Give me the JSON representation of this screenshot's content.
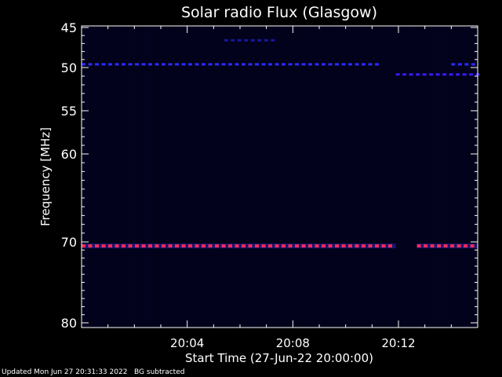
{
  "chart_data": {
    "type": "heatmap",
    "title": "Solar radio Flux (Glasgow)",
    "ylabel": "Frequency [MHz]",
    "xlabel": "Start Time (27-Jun-22 20:00:00)",
    "y_ticks": [
      {
        "label": "45",
        "value": 45
      },
      {
        "label": "50",
        "value": 50
      },
      {
        "label": "55",
        "value": 55
      },
      {
        "label": "60",
        "value": 60
      },
      {
        "label": "70",
        "value": 70
      },
      {
        "label": "80",
        "value": 80
      }
    ],
    "x_ticks": [
      {
        "label": "20:04",
        "minutes": 4
      },
      {
        "label": "20:08",
        "minutes": 8
      },
      {
        "label": "20:12",
        "minutes": 12
      }
    ],
    "x_range_minutes": [
      0,
      15
    ],
    "y_axis_scale": "nonlinear (frequency increases downward)",
    "background_color": "#000000",
    "plot_background_color": "#02021a",
    "features": [
      {
        "name": "interference-70MHz",
        "color": "#ff2a55",
        "frequency": 70.5,
        "time_ranges_min": [
          [
            0,
            11.9
          ],
          [
            12.7,
            15
          ]
        ]
      },
      {
        "name": "interference-50MHz",
        "color": "#2a2aff",
        "frequency": 49.6,
        "time_ranges_min": [
          [
            0,
            11.4
          ],
          [
            14.0,
            15
          ]
        ]
      },
      {
        "name": "interference-51MHz",
        "color": "#3a1aff",
        "frequency": 50.8,
        "time_ranges_min": [
          [
            11.9,
            15
          ]
        ]
      },
      {
        "name": "weak-47MHz",
        "color": "#18189a",
        "frequency": 46.6,
        "time_ranges_min": [
          [
            5.4,
            7.3
          ]
        ]
      }
    ]
  },
  "footer": {
    "updated": "Updated Mon Jun 27 20:31:33 2022",
    "note": "BG subtracted"
  }
}
